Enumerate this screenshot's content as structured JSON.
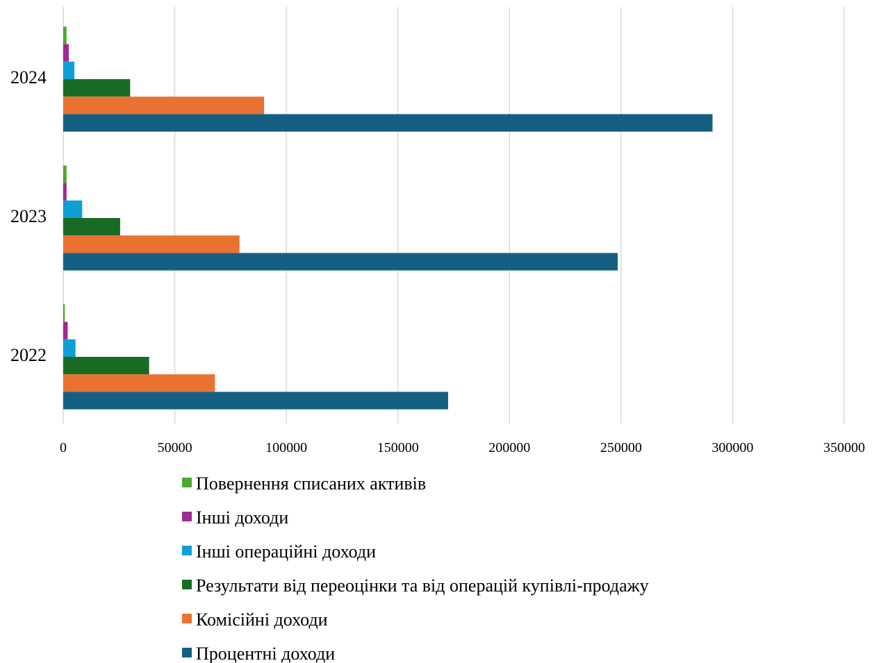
{
  "chart_data": {
    "type": "bar",
    "orientation": "horizontal",
    "categories": [
      "2022",
      "2023",
      "2024"
    ],
    "series": [
      {
        "name": "Повернення списаних активів",
        "color": "#4ea72e",
        "values": [
          700,
          1500,
          1500
        ]
      },
      {
        "name": "Інші доходи",
        "color": "#a02b93",
        "values": [
          2000,
          1500,
          2500
        ]
      },
      {
        "name": "Інші операційні доходи",
        "color": "#0f9ed5",
        "values": [
          5500,
          8500,
          5000
        ]
      },
      {
        "name": "Результати від переоцінки та від операцій купівлі-продажу",
        "color": "#196b24",
        "values": [
          38500,
          25500,
          30000
        ]
      },
      {
        "name": "Комісійні доходи",
        "color": "#e97132",
        "values": [
          68000,
          79000,
          90000
        ]
      },
      {
        "name": "Процентні доходи",
        "color": "#156082",
        "values": [
          172500,
          248500,
          291000
        ]
      }
    ],
    "x_ticks": [
      "0",
      "50000",
      "100000",
      "150000",
      "200000",
      "250000",
      "300000",
      "350000"
    ],
    "xlim": [
      0,
      350000
    ],
    "grid": true,
    "legend_position": "bottom"
  }
}
